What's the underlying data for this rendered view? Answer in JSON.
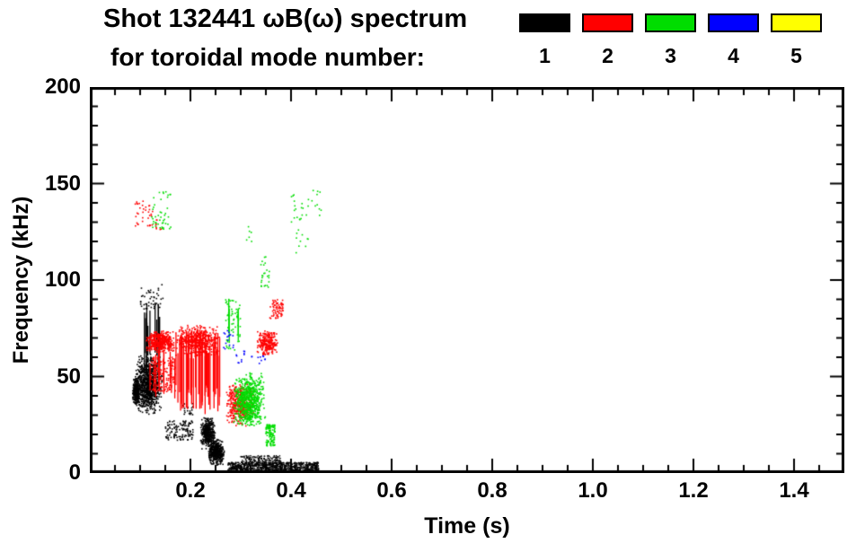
{
  "chart_data": {
    "type": "scatter",
    "title": "Shot 132441 ωB(ω) spectrum",
    "subtitle": "for toroidal mode number:",
    "xlabel": "Time (s)",
    "ylabel": "Frequency (kHz)",
    "xlim": [
      0.0,
      1.5
    ],
    "ylim": [
      0,
      200
    ],
    "x_minor_step": 0.05,
    "y_minor_step": 10,
    "grid": false,
    "legend_position": "top-right",
    "xticks": [
      {
        "v": 0.2,
        "label": "0.2"
      },
      {
        "v": 0.4,
        "label": "0.4"
      },
      {
        "v": 0.6,
        "label": "0.6"
      },
      {
        "v": 0.8,
        "label": "0.8"
      },
      {
        "v": 1.0,
        "label": "1.0"
      },
      {
        "v": 1.2,
        "label": "1.2"
      },
      {
        "v": 1.4,
        "label": "1.4"
      }
    ],
    "yticks": [
      {
        "v": 0,
        "label": "0"
      },
      {
        "v": 50,
        "label": "50"
      },
      {
        "v": 100,
        "label": "100"
      },
      {
        "v": 150,
        "label": "150"
      },
      {
        "v": 200,
        "label": "200"
      }
    ],
    "legend": [
      {
        "label": "1",
        "color": "#000000"
      },
      {
        "label": "2",
        "color": "#ff0000"
      },
      {
        "label": "3",
        "color": "#00dd00"
      },
      {
        "label": "4",
        "color": "#0000ff"
      },
      {
        "label": "5",
        "color": "#ffff00"
      }
    ],
    "series": [
      {
        "name": "n=1",
        "color": "#000000",
        "clusters": [
          {
            "type": "dots",
            "t": [
              0.085,
              0.1
            ],
            "f": [
              35,
              50
            ],
            "n": 300,
            "dist": "center"
          },
          {
            "type": "dots",
            "t": [
              0.09,
              0.145
            ],
            "f": [
              30,
              62
            ],
            "n": 900,
            "dist": "center"
          },
          {
            "type": "vlines",
            "t": [
              0.1,
              0.145
            ],
            "f": [
              50,
              90
            ],
            "n": 14
          },
          {
            "type": "dots",
            "t": [
              0.1,
              0.15
            ],
            "f": [
              85,
              98
            ],
            "n": 45
          },
          {
            "type": "dots",
            "t": [
              0.15,
              0.205
            ],
            "f": [
              17,
              27
            ],
            "n": 120
          },
          {
            "type": "dots",
            "t": [
              0.185,
              0.205
            ],
            "f": [
              29,
              36
            ],
            "n": 20
          },
          {
            "type": "dots",
            "t": [
              0.22,
              0.25
            ],
            "f": [
              12,
              29
            ],
            "n": 400,
            "dist": "center"
          },
          {
            "type": "dots",
            "t": [
              0.235,
              0.268
            ],
            "f": [
              4,
              18
            ],
            "n": 450,
            "dist": "center"
          },
          {
            "type": "dots",
            "t": [
              0.275,
              0.455
            ],
            "f": [
              1,
              5.5
            ],
            "n": 900,
            "size": 1.4
          },
          {
            "type": "dots",
            "t": [
              0.3,
              0.38
            ],
            "f": [
              4,
              9
            ],
            "n": 200,
            "size": 1.4
          }
        ]
      },
      {
        "name": "n=2",
        "color": "#ff0000",
        "clusters": [
          {
            "type": "dots",
            "t": [
              0.11,
              0.17
            ],
            "f": [
              62,
              74
            ],
            "n": 450,
            "dist": "center"
          },
          {
            "type": "vlines",
            "t": [
              0.115,
              0.175
            ],
            "f": [
              38,
              65
            ],
            "n": 12
          },
          {
            "type": "dots",
            "t": [
              0.12,
              0.17
            ],
            "f": [
              42,
              60
            ],
            "n": 140
          },
          {
            "type": "vlines",
            "t": [
              0.17,
              0.26
            ],
            "f": [
              30,
              75
            ],
            "n": 45
          },
          {
            "type": "dots",
            "t": [
              0.17,
              0.26
            ],
            "f": [
              60,
              77
            ],
            "n": 500,
            "dist": "center"
          },
          {
            "type": "dots",
            "t": [
              0.27,
              0.327
            ],
            "f": [
              24,
              47
            ],
            "n": 400,
            "dist": "center"
          },
          {
            "type": "dots",
            "t": [
              0.33,
              0.375
            ],
            "f": [
              61,
              74
            ],
            "n": 250,
            "dist": "center"
          },
          {
            "type": "dots",
            "t": [
              0.357,
              0.384
            ],
            "f": [
              80,
              90
            ],
            "n": 70
          },
          {
            "type": "dots",
            "t": [
              0.089,
              0.125
            ],
            "f": [
              128,
              141
            ],
            "n": 35
          },
          {
            "type": "dots",
            "t": [
              0.13,
              0.145
            ],
            "f": [
              126,
              132
            ],
            "n": 8
          }
        ]
      },
      {
        "name": "n=3",
        "color": "#00dd00",
        "clusters": [
          {
            "type": "dots",
            "t": [
              0.121,
              0.161
            ],
            "f": [
              126,
              146
            ],
            "n": 45
          },
          {
            "type": "dots",
            "t": [
              0.27,
              0.3
            ],
            "f": [
              63,
              90
            ],
            "n": 60
          },
          {
            "type": "vlines",
            "t": [
              0.275,
              0.295
            ],
            "f": [
              65,
              92
            ],
            "n": 4
          },
          {
            "type": "dots",
            "t": [
              0.285,
              0.35
            ],
            "f": [
              23,
              52
            ],
            "n": 700,
            "dist": "center"
          },
          {
            "type": "dots",
            "t": [
              0.35,
              0.368
            ],
            "f": [
              14,
              25
            ],
            "n": 120
          },
          {
            "type": "dots",
            "t": [
              0.34,
              0.357
            ],
            "f": [
              96,
              112
            ],
            "n": 25
          },
          {
            "type": "dots",
            "t": [
              0.4,
              0.46
            ],
            "f": [
              130,
              147
            ],
            "n": 30
          },
          {
            "type": "dots",
            "t": [
              0.41,
              0.435
            ],
            "f": [
              114,
              126
            ],
            "n": 10
          },
          {
            "type": "dots",
            "t": [
              0.31,
              0.33
            ],
            "f": [
              120,
              128
            ],
            "n": 6
          }
        ]
      },
      {
        "name": "n=4",
        "color": "#0000ff",
        "clusters": [
          {
            "type": "dots",
            "t": [
              0.264,
              0.29
            ],
            "f": [
              64,
              74
            ],
            "n": 16
          },
          {
            "type": "dots",
            "t": [
              0.29,
              0.31
            ],
            "f": [
              57,
              64
            ],
            "n": 10
          },
          {
            "type": "dots",
            "t": [
              0.32,
              0.35
            ],
            "f": [
              56,
              61
            ],
            "n": 10
          }
        ]
      },
      {
        "name": "n=5",
        "color": "#ffff00",
        "clusters": []
      }
    ]
  }
}
